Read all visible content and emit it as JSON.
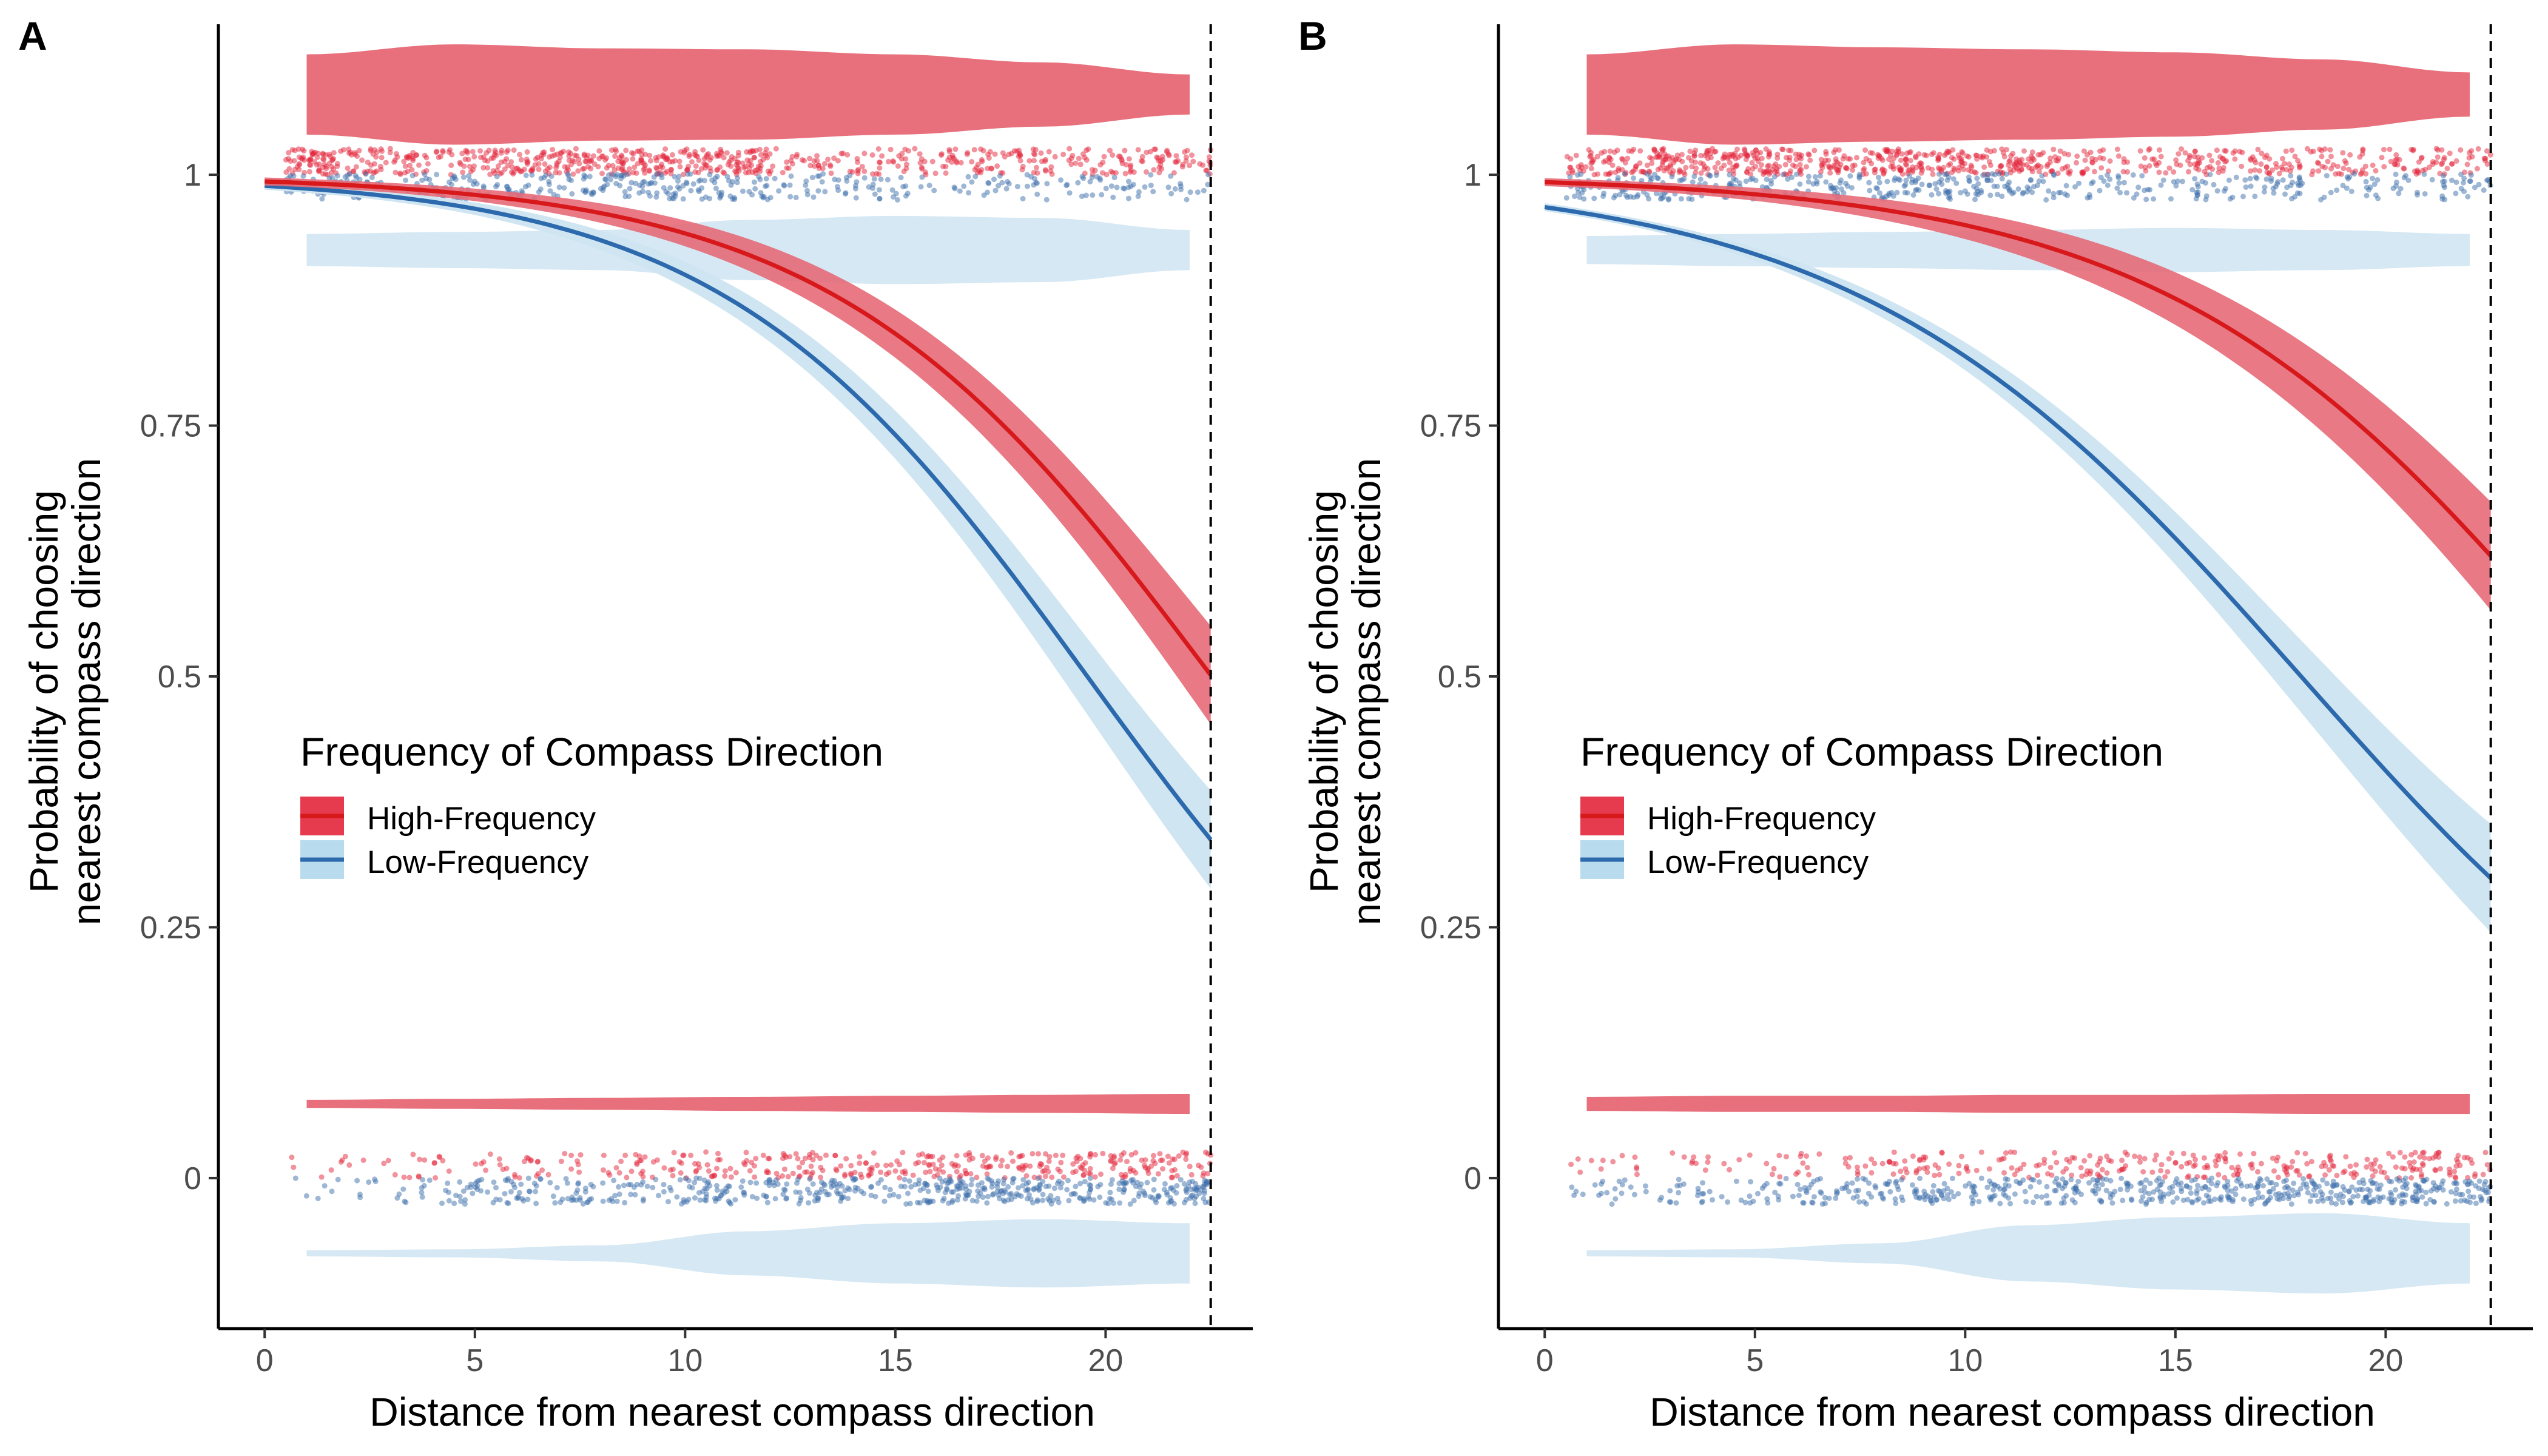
{
  "colors": {
    "high_line": "#d7191c",
    "high_fill": "#e8707c",
    "high_ribbon": "#e66a78",
    "high_point": "#e3253b",
    "low_line": "#2c69ad",
    "low_fill": "#d5e8f3",
    "low_ribbon": "#cfe5f1",
    "low_point": "#3e6fab",
    "axis": "#000000",
    "tick_label": "#4d4d4d"
  },
  "legend": {
    "title": "Frequency of Compass Direction",
    "items": [
      {
        "label": "High-Frequency",
        "key": "high"
      },
      {
        "label": "Low-Frequency",
        "key": "low"
      }
    ],
    "placement": "center-left"
  },
  "chart_data": [
    {
      "panel": "A",
      "type": "line",
      "xlabel": "Distance from nearest compass direction",
      "ylabel_line1": "Probability of choosing",
      "ylabel_line2": "nearest compass direction",
      "xlim": [
        -1.1,
        23.5
      ],
      "ylim": [
        -0.15,
        1.15
      ],
      "x_ticks": [
        0,
        5,
        10,
        15,
        20
      ],
      "x_tick_labels": [
        "0",
        "5",
        "10",
        "15",
        "20"
      ],
      "y_ticks": [
        0,
        0.25,
        0.5,
        0.75,
        1
      ],
      "y_tick_labels": [
        "0",
        "0.25",
        "0.5",
        "0.75",
        "1"
      ],
      "reference_line_x": 22.5,
      "series": [
        {
          "name": "High-Frequency",
          "key": "high",
          "b0": 5.0,
          "b1": -0.222,
          "ci": 0.045,
          "points_hi": 1.013,
          "points_lo": 0.013,
          "n_hi": 720,
          "n_lo": 380,
          "violin_hi": {
            "center": 1.08,
            "widths": [
              0.04,
              0.05,
              0.046,
              0.045,
              0.04,
              0.032,
              0.02
            ]
          },
          "violin_lo": {
            "center": 0.074,
            "widths": [
              0.004,
              0.005,
              0.006,
              0.007,
              0.008,
              0.009,
              0.01
            ]
          }
        },
        {
          "name": "Low-Frequency",
          "key": "low",
          "b0": 4.5,
          "b1": -0.23,
          "ci": 0.045,
          "points_hi": 0.988,
          "points_lo": -0.013,
          "n_hi": 420,
          "n_lo": 560,
          "violin_hi": {
            "center": 0.925,
            "widths": [
              0.016,
              0.018,
              0.02,
              0.03,
              0.034,
              0.032,
              0.02
            ]
          },
          "violin_lo": {
            "center": -0.075,
            "widths": [
              0.003,
              0.004,
              0.008,
              0.022,
              0.03,
              0.034,
              0.03
            ]
          }
        }
      ]
    },
    {
      "panel": "B",
      "type": "line",
      "xlabel": "Distance from nearest compass direction",
      "ylabel_line1": "Probability of choosing",
      "ylabel_line2": "nearest compass direction",
      "xlim": [
        -1.1,
        23.5
      ],
      "ylim": [
        -0.15,
        1.15
      ],
      "x_ticks": [
        0,
        5,
        10,
        15,
        20
      ],
      "x_tick_labels": [
        "0",
        "5",
        "10",
        "15",
        "20"
      ],
      "y_ticks": [
        0,
        0.25,
        0.5,
        0.75,
        1
      ],
      "y_tick_labels": [
        "0",
        "0.25",
        "0.5",
        "0.75",
        "1"
      ],
      "reference_line_x": 22.5,
      "series": [
        {
          "name": "High-Frequency",
          "key": "high",
          "b0": 4.9,
          "b1": -0.196,
          "ci": 0.05,
          "points_hi": 1.013,
          "points_lo": 0.013,
          "n_hi": 760,
          "n_lo": 320,
          "violin_hi": {
            "center": 1.08,
            "widths": [
              0.04,
              0.05,
              0.047,
              0.045,
              0.042,
              0.035,
              0.022
            ]
          },
          "violin_lo": {
            "center": 0.074,
            "widths": [
              0.007,
              0.008,
              0.008,
              0.009,
              0.009,
              0.01,
              0.01
            ]
          }
        },
        {
          "name": "Low-Frequency",
          "key": "low",
          "b0": 3.4,
          "b1": -0.189,
          "ci": 0.05,
          "points_hi": 0.988,
          "points_lo": -0.013,
          "n_hi": 460,
          "n_lo": 600,
          "violin_hi": {
            "center": 0.925,
            "widths": [
              0.014,
              0.016,
              0.018,
              0.02,
              0.022,
              0.02,
              0.016
            ]
          },
          "violin_lo": {
            "center": -0.075,
            "widths": [
              0.003,
              0.004,
              0.01,
              0.028,
              0.036,
              0.04,
              0.03
            ]
          }
        }
      ]
    }
  ]
}
